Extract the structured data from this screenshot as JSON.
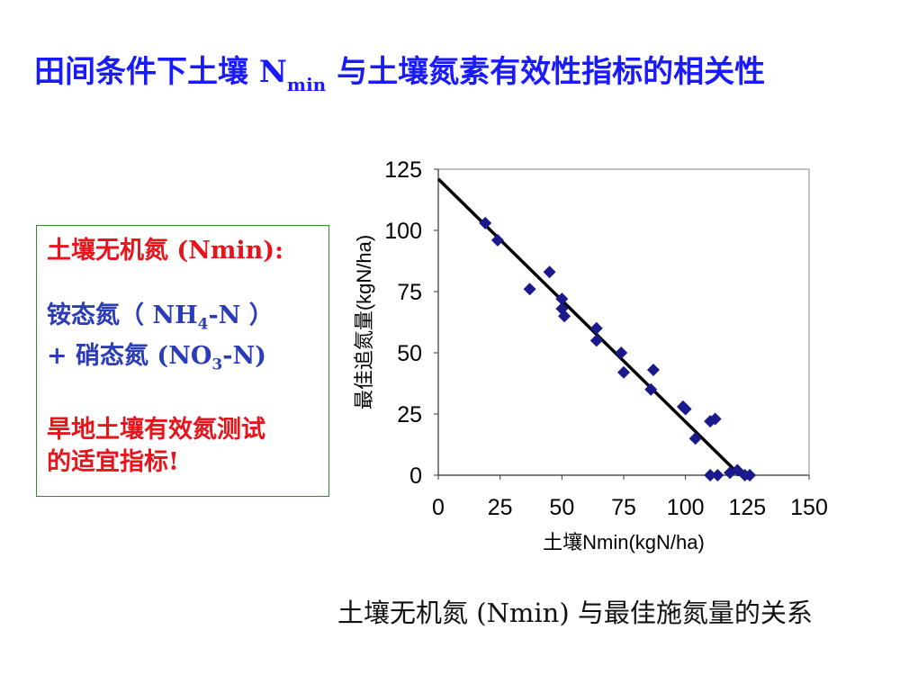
{
  "title": {
    "main": "田间条件下土壤 N",
    "sub": "min",
    "rest": " 与土壤氮素有效性指标的相关性"
  },
  "callout": {
    "heading": "土壤无机氮 (Nmin):",
    "line1_a": "铵态氮（ NH",
    "line1_sub": "4",
    "line1_b": "-N ）",
    "line2_a": "+ 硝态氮  (NO",
    "line2_sub": "3",
    "line2_b": "-N)",
    "conclusion_1": "旱地土壤有效氮测试",
    "conclusion_2": "的适宜指标!"
  },
  "caption": "土壤无机氮 (Nmin) 与最佳施氮量的关系",
  "colors": {
    "title": "#1a1aff",
    "highlight": "#e8141c",
    "body": "#2a3cb8",
    "marker": "#1a1a8c",
    "box_border": "#2e8b2e"
  },
  "chart_data": {
    "type": "scatter",
    "xlabel": "土壤Nmin(kgN/ha)",
    "ylabel": "最佳追氮量(kgN/ha)",
    "xlim": [
      0,
      150
    ],
    "ylim": [
      0,
      125
    ],
    "xticks": [
      0,
      25,
      50,
      75,
      100,
      125,
      150
    ],
    "yticks": [
      0,
      25,
      50,
      75,
      100,
      125
    ],
    "grid": false,
    "marker": "diamond",
    "points": [
      [
        19,
        103
      ],
      [
        24,
        96
      ],
      [
        37,
        76
      ],
      [
        45,
        83
      ],
      [
        50,
        72
      ],
      [
        50,
        68
      ],
      [
        51,
        65
      ],
      [
        64,
        60
      ],
      [
        64,
        55
      ],
      [
        74,
        50
      ],
      [
        75,
        42
      ],
      [
        87,
        43
      ],
      [
        86,
        35
      ],
      [
        99,
        28
      ],
      [
        100,
        27
      ],
      [
        104,
        15
      ],
      [
        110,
        22
      ],
      [
        112,
        23
      ],
      [
        110,
        0
      ],
      [
        113,
        0
      ],
      [
        118,
        1
      ],
      [
        121,
        2
      ],
      [
        124,
        0
      ],
      [
        126,
        0
      ]
    ],
    "trendline": {
      "x": [
        0,
        122
      ],
      "y": [
        121,
        0
      ]
    }
  }
}
